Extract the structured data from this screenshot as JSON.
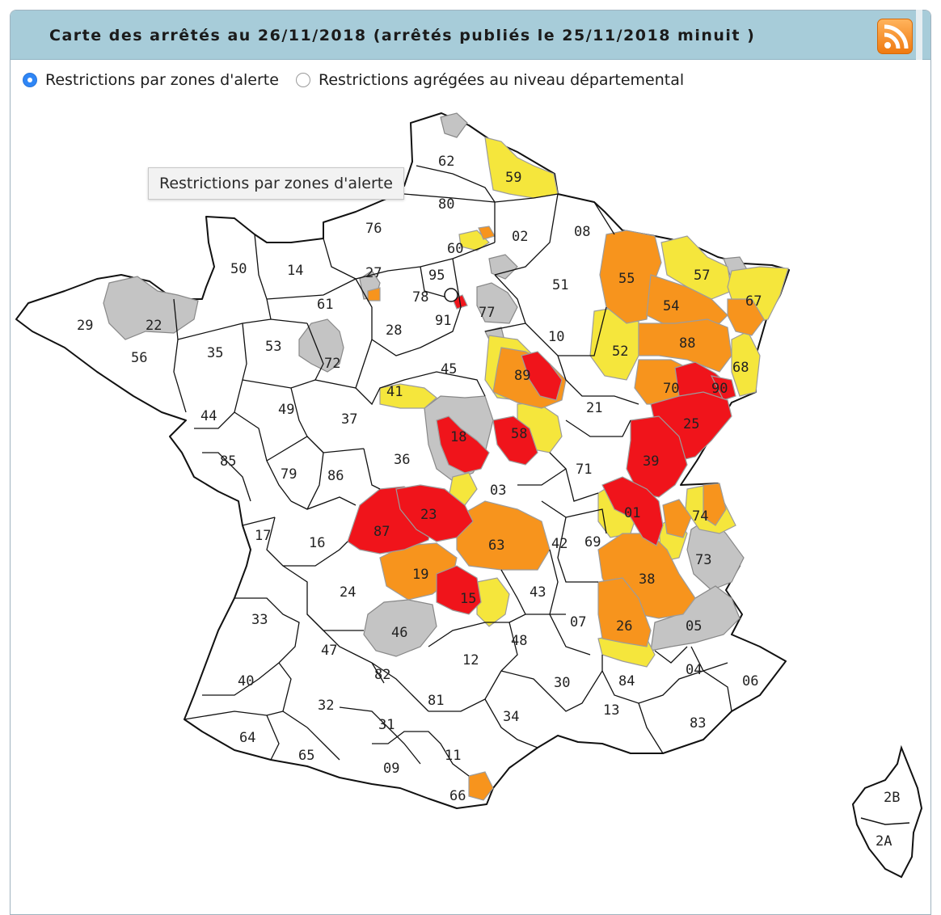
{
  "header": {
    "title": "Carte des arrêtés au 26/11/2018 (arrêtés publiés le 25/11/2018 minuit )",
    "rss_icon": "rss-feed-icon"
  },
  "options": {
    "zones_label": "Restrictions par zones d'alerte",
    "zones_selected": true,
    "departmental_label": "Restrictions agrégées au niveau départemental",
    "departmental_selected": false
  },
  "tooltip": "Restrictions par zones d'alerte",
  "legend_colors": {
    "no_restriction": "#ffffff",
    "vigilance": "#c4c4c4",
    "alerte": "#f5e63c",
    "alerte_renforcee": "#f7941d",
    "crise": "#f0141b"
  },
  "departments": [
    {
      "code": "62",
      "status": "none"
    },
    {
      "code": "59",
      "status": "alerte"
    },
    {
      "code": "80",
      "status": "none"
    },
    {
      "code": "76",
      "status": "none"
    },
    {
      "code": "60",
      "status": "none"
    },
    {
      "code": "02",
      "status": "none"
    },
    {
      "code": "08",
      "status": "none"
    },
    {
      "code": "50",
      "status": "none"
    },
    {
      "code": "14",
      "status": "none"
    },
    {
      "code": "27",
      "status": "none"
    },
    {
      "code": "95",
      "status": "none"
    },
    {
      "code": "55",
      "status": "alerte_renforcee"
    },
    {
      "code": "57",
      "status": "alerte"
    },
    {
      "code": "67",
      "status": "alerte"
    },
    {
      "code": "29",
      "status": "none"
    },
    {
      "code": "22",
      "status": "vigilance"
    },
    {
      "code": "61",
      "status": "none"
    },
    {
      "code": "78",
      "status": "none"
    },
    {
      "code": "77",
      "status": "none"
    },
    {
      "code": "51",
      "status": "none"
    },
    {
      "code": "54",
      "status": "alerte_renforcee"
    },
    {
      "code": "91",
      "status": "none"
    },
    {
      "code": "56",
      "status": "none"
    },
    {
      "code": "35",
      "status": "none"
    },
    {
      "code": "53",
      "status": "none"
    },
    {
      "code": "72",
      "status": "none"
    },
    {
      "code": "28",
      "status": "none"
    },
    {
      "code": "10",
      "status": "none"
    },
    {
      "code": "52",
      "status": "alerte"
    },
    {
      "code": "88",
      "status": "alerte_renforcee"
    },
    {
      "code": "68",
      "status": "alerte"
    },
    {
      "code": "45",
      "status": "none"
    },
    {
      "code": "89",
      "status": "alerte_renforcee"
    },
    {
      "code": "41",
      "status": "none"
    },
    {
      "code": "70",
      "status": "alerte_renforcee"
    },
    {
      "code": "90",
      "status": "crise"
    },
    {
      "code": "44",
      "status": "none"
    },
    {
      "code": "49",
      "status": "none"
    },
    {
      "code": "37",
      "status": "none"
    },
    {
      "code": "21",
      "status": "none"
    },
    {
      "code": "25",
      "status": "crise"
    },
    {
      "code": "18",
      "status": "vigilance"
    },
    {
      "code": "58",
      "status": "crise"
    },
    {
      "code": "85",
      "status": "none"
    },
    {
      "code": "79",
      "status": "none"
    },
    {
      "code": "86",
      "status": "none"
    },
    {
      "code": "36",
      "status": "none"
    },
    {
      "code": "71",
      "status": "none"
    },
    {
      "code": "39",
      "status": "crise"
    },
    {
      "code": "03",
      "status": "none"
    },
    {
      "code": "01",
      "status": "crise"
    },
    {
      "code": "74",
      "status": "alerte"
    },
    {
      "code": "87",
      "status": "crise"
    },
    {
      "code": "23",
      "status": "crise"
    },
    {
      "code": "17",
      "status": "none"
    },
    {
      "code": "16",
      "status": "none"
    },
    {
      "code": "63",
      "status": "alerte_renforcee"
    },
    {
      "code": "42",
      "status": "none"
    },
    {
      "code": "69",
      "status": "none"
    },
    {
      "code": "73",
      "status": "vigilance"
    },
    {
      "code": "19",
      "status": "alerte_renforcee"
    },
    {
      "code": "38",
      "status": "alerte_renforcee"
    },
    {
      "code": "24",
      "status": "none"
    },
    {
      "code": "15",
      "status": "crise"
    },
    {
      "code": "43",
      "status": "none"
    },
    {
      "code": "33",
      "status": "none"
    },
    {
      "code": "46",
      "status": "vigilance"
    },
    {
      "code": "07",
      "status": "none"
    },
    {
      "code": "26",
      "status": "alerte_renforcee"
    },
    {
      "code": "05",
      "status": "vigilance"
    },
    {
      "code": "47",
      "status": "none"
    },
    {
      "code": "48",
      "status": "none"
    },
    {
      "code": "12",
      "status": "none"
    },
    {
      "code": "82",
      "status": "none"
    },
    {
      "code": "04",
      "status": "none"
    },
    {
      "code": "40",
      "status": "none"
    },
    {
      "code": "30",
      "status": "none"
    },
    {
      "code": "84",
      "status": "none"
    },
    {
      "code": "06",
      "status": "none"
    },
    {
      "code": "32",
      "status": "none"
    },
    {
      "code": "81",
      "status": "none"
    },
    {
      "code": "13",
      "status": "none"
    },
    {
      "code": "31",
      "status": "none"
    },
    {
      "code": "34",
      "status": "none"
    },
    {
      "code": "83",
      "status": "none"
    },
    {
      "code": "64",
      "status": "none"
    },
    {
      "code": "65",
      "status": "none"
    },
    {
      "code": "11",
      "status": "none"
    },
    {
      "code": "09",
      "status": "none"
    },
    {
      "code": "66",
      "status": "none"
    },
    {
      "code": "2B",
      "status": "none"
    },
    {
      "code": "2A",
      "status": "none"
    }
  ]
}
